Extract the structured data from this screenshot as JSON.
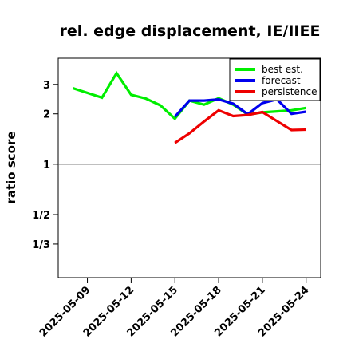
{
  "chart_data": {
    "type": "line",
    "title": "rel. edge displacement, IE/IIEE",
    "xlabel": "",
    "ylabel": "ratio score",
    "x_start": "2025-05-08",
    "xlim": [
      "2025-05-07",
      "2025-05-25"
    ],
    "x_ticks": [
      {
        "date": "2025-05-09",
        "label": "2025-05-09",
        "color": "#000000"
      },
      {
        "date": "2025-05-12",
        "label": "2025-05-12",
        "color": "#000000"
      },
      {
        "date": "2025-05-15",
        "label": "2025-05-15",
        "color": "#228b22"
      },
      {
        "date": "2025-05-18",
        "label": "2025-05-18",
        "color": "#000000"
      },
      {
        "date": "2025-05-21",
        "label": "2025-05-21",
        "color": "#000000"
      },
      {
        "date": "2025-05-24",
        "label": "2025-05-24",
        "color": "#000000"
      }
    ],
    "y_scale": "log",
    "ylim": [
      0.21,
      4.3
    ],
    "y_ticks": [
      {
        "value": 0.3333,
        "label": "1/3"
      },
      {
        "value": 0.5,
        "label": "1/2"
      },
      {
        "value": 1,
        "label": "1"
      },
      {
        "value": 2,
        "label": "2"
      },
      {
        "value": 3,
        "label": "3"
      }
    ],
    "reference_line": 1,
    "grid": false,
    "legend_position": "top-right",
    "series": [
      {
        "name": "best est.",
        "color": "#00ee00",
        "points": [
          [
            "2025-05-08",
            2.85
          ],
          [
            "2025-05-10",
            2.5
          ],
          [
            "2025-05-11",
            3.5
          ],
          [
            "2025-05-12",
            2.6
          ],
          [
            "2025-05-13",
            2.47
          ],
          [
            "2025-05-14",
            2.25
          ],
          [
            "2025-05-15",
            1.87
          ],
          [
            "2025-05-16",
            2.4
          ],
          [
            "2025-05-17",
            2.27
          ],
          [
            "2025-05-18",
            2.48
          ],
          [
            "2025-05-19",
            2.27
          ],
          [
            "2025-05-20",
            1.98
          ],
          [
            "2025-05-21",
            2.04
          ],
          [
            "2025-05-22",
            2.07
          ],
          [
            "2025-05-23",
            2.1
          ],
          [
            "2025-05-24",
            2.17
          ]
        ]
      },
      {
        "name": "forecast",
        "color": "#0000ee",
        "points": [
          [
            "2025-05-15",
            1.92
          ],
          [
            "2025-05-16",
            2.4
          ],
          [
            "2025-05-17",
            2.4
          ],
          [
            "2025-05-18",
            2.44
          ],
          [
            "2025-05-19",
            2.3
          ],
          [
            "2025-05-20",
            1.99
          ],
          [
            "2025-05-21",
            2.32
          ],
          [
            "2025-05-22",
            2.44
          ],
          [
            "2025-05-23",
            2.0
          ],
          [
            "2025-05-24",
            2.06
          ]
        ]
      },
      {
        "name": "persistence",
        "color": "#ee0000",
        "points": [
          [
            "2025-05-15",
            1.34
          ],
          [
            "2025-05-16",
            1.53
          ],
          [
            "2025-05-17",
            1.8
          ],
          [
            "2025-05-18",
            2.1
          ],
          [
            "2025-05-19",
            1.94
          ],
          [
            "2025-05-20",
            1.97
          ],
          [
            "2025-05-21",
            2.05
          ],
          [
            "2025-05-22",
            1.81
          ],
          [
            "2025-05-23",
            1.6
          ],
          [
            "2025-05-24",
            1.61
          ]
        ]
      }
    ]
  }
}
